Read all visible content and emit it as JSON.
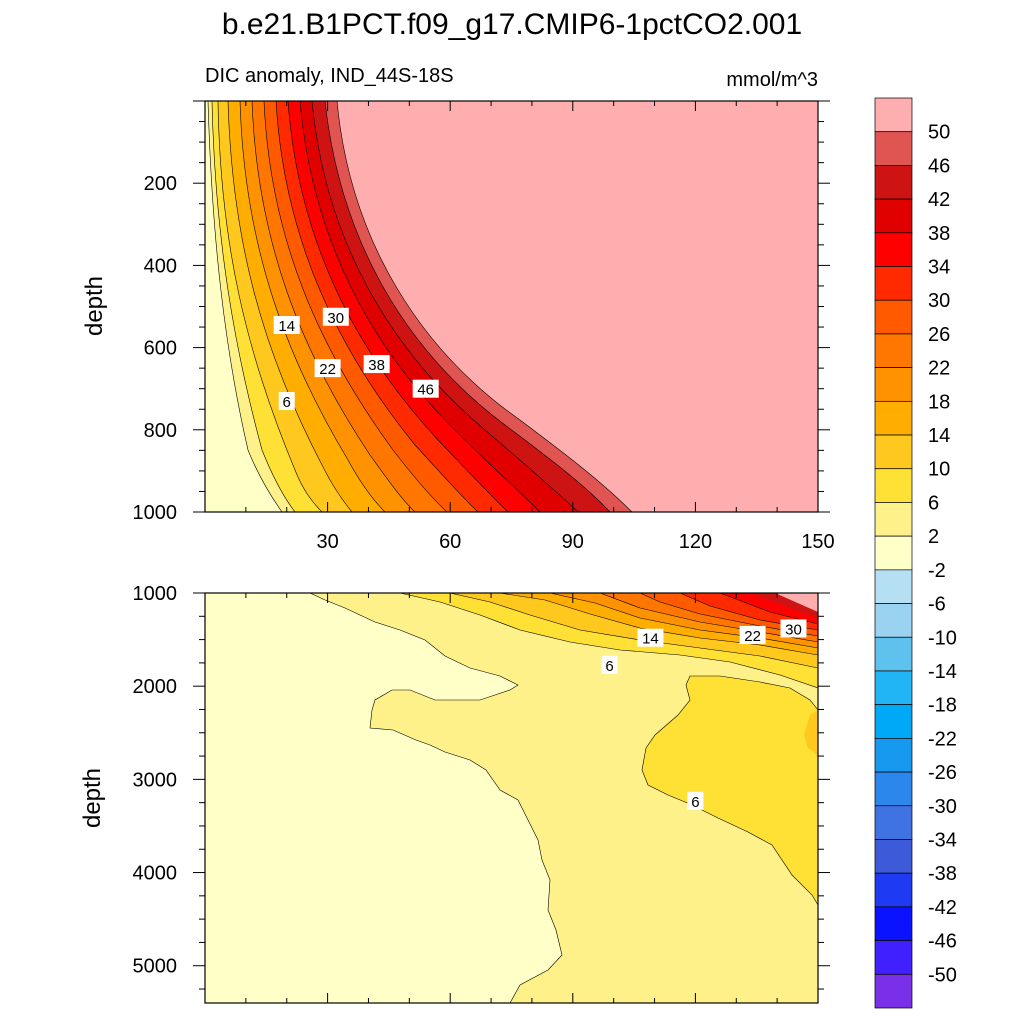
{
  "title": "b.e21.B1PCT.f09_g17.CMIP6-1pctCO2.001",
  "chart_data": {
    "type": "heatmap",
    "subtitle_left": "DIC anomaly, IND_44S-18S",
    "units": "mmol/m^3",
    "ylabel": "depth",
    "grid": false,
    "x_ticks": [
      "30",
      "60",
      "90",
      "120",
      "150"
    ],
    "x_tick_values": [
      30,
      60,
      90,
      120,
      150
    ],
    "xlim": [
      0,
      150
    ],
    "panels": [
      {
        "name": "upper",
        "ylim": [
          1000,
          0
        ],
        "y_ticks": [
          "200",
          "400",
          "600",
          "800",
          "1000"
        ],
        "y_tick_values": [
          200,
          400,
          600,
          800,
          1000
        ],
        "contour_labels": [
          {
            "text": "14",
            "x": 20,
            "depth": 545
          },
          {
            "text": "30",
            "x": 32,
            "depth": 525
          },
          {
            "text": "22",
            "x": 30,
            "depth": 650
          },
          {
            "text": "38",
            "x": 42,
            "depth": 640
          },
          {
            "text": "46",
            "x": 54,
            "depth": 700
          },
          {
            "text": "6",
            "x": 20,
            "depth": 730
          }
        ]
      },
      {
        "name": "lower",
        "ylim": [
          5400,
          1000
        ],
        "y_ticks": [
          "1000",
          "2000",
          "3000",
          "4000",
          "5000"
        ],
        "y_tick_values": [
          1000,
          2000,
          3000,
          4000,
          5000
        ],
        "contour_labels": [
          {
            "text": "14",
            "x": 109,
            "depth": 1480
          },
          {
            "text": "22",
            "x": 134,
            "depth": 1450
          },
          {
            "text": "30",
            "x": 144,
            "depth": 1380
          },
          {
            "text": "6",
            "x": 99,
            "depth": 1770
          },
          {
            "text": "6",
            "x": 120,
            "depth": 3230
          }
        ]
      }
    ],
    "colorbar": {
      "labels": [
        "50",
        "46",
        "42",
        "38",
        "34",
        "30",
        "26",
        "22",
        "18",
        "14",
        "10",
        "6",
        "2",
        "-2",
        "-6",
        "-10",
        "-14",
        "-18",
        "-22",
        "-26",
        "-30",
        "-34",
        "-38",
        "-42",
        "-46",
        "-50"
      ],
      "colors": [
        "#ffaeb0",
        "#e05552",
        "#cd1412",
        "#e00000",
        "#ff0000",
        "#ff2a00",
        "#ff5a00",
        "#ff7600",
        "#ff9200",
        "#ffae00",
        "#ffc81e",
        "#ffe035",
        "#fff189",
        "#ffffc8",
        "#b5e0f4",
        "#99d3f1",
        "#5fc2ee",
        "#22b5f5",
        "#00a8f8",
        "#1799f0",
        "#2b87ec",
        "#3f72e2",
        "#3d5ad9",
        "#1e3af2",
        "#0b12ff",
        "#4020ff",
        "#7a30e8"
      ]
    }
  }
}
